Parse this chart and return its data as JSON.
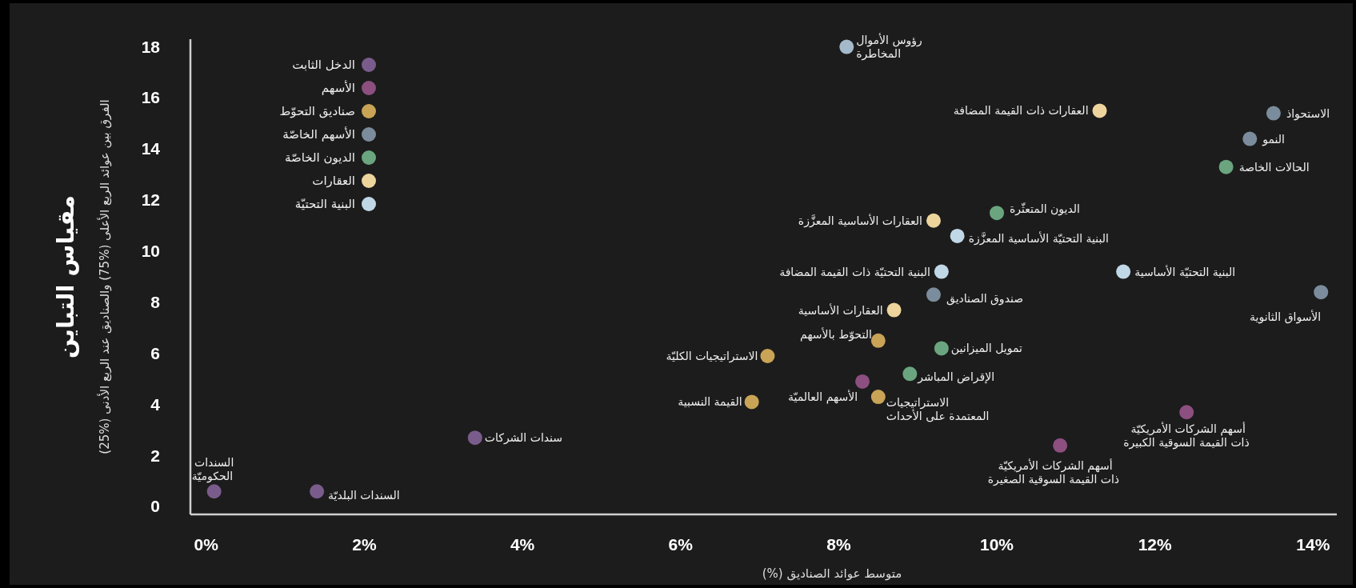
{
  "chart_data": {
    "type": "scatter",
    "xlabel": "متوسط عوائد الصناديق (%)",
    "ylabel": "مقياس التباين",
    "xlim": [
      -0.2,
      14.3
    ],
    "ylim": [
      -0.3,
      18.3
    ],
    "xticks": [
      {
        "value": 0,
        "label": "0%"
      },
      {
        "value": 2,
        "label": "2%"
      },
      {
        "value": 4,
        "label": "4%"
      },
      {
        "value": 6,
        "label": "6%"
      },
      {
        "value": 8,
        "label": "8%"
      },
      {
        "value": 10,
        "label": "10%"
      },
      {
        "value": 12,
        "label": "12%"
      },
      {
        "value": 14,
        "label": "14%"
      }
    ],
    "yticks": [
      0,
      2,
      4,
      6,
      8,
      10,
      12,
      14,
      16,
      18
    ],
    "grid": false,
    "legend": "top left",
    "marker": "circle",
    "series": [
      {
        "name": "الدخل الثابت",
        "color": "#7a5c8c",
        "x": [
          0.1,
          1.4,
          3.4
        ],
        "values": [
          0.6,
          0.6,
          2.7
        ]
      },
      {
        "name": "الأسهم",
        "color": "#8c4f80",
        "x": [
          8.3,
          12.4,
          10.8
        ],
        "values": [
          4.9,
          3.7,
          2.4
        ]
      },
      {
        "name": "صناديق التحوّط",
        "color": "#c9a456",
        "x": [
          8.5,
          7.1,
          6.9,
          8.5
        ],
        "values": [
          6.5,
          5.9,
          4.1,
          4.3
        ]
      },
      {
        "name": "الأسهم الخاصّة",
        "color": "#7b8c9c",
        "x": [
          13.5,
          13.2,
          9.2,
          14.1,
          8.1
        ],
        "values": [
          15.4,
          14.4,
          8.3,
          8.4,
          18.0
        ],
        "colors": [
          "#7b8c9c",
          "#7b8c9c",
          "#7b8c9c",
          "#7b8c9c",
          "#a4b9ca"
        ]
      },
      {
        "name": "الديون الخاصّة",
        "color": "#6aa57f",
        "x": [
          12.9,
          10.0,
          9.3,
          8.9
        ],
        "values": [
          13.3,
          11.5,
          6.2,
          5.2
        ]
      },
      {
        "name": "العقارات",
        "color": "#ecd49c",
        "x": [
          11.3,
          9.2,
          8.7
        ],
        "values": [
          15.5,
          11.2,
          7.7
        ]
      },
      {
        "name": "البنية التحتيّة",
        "color": "#c0d7e6",
        "x": [
          9.5,
          9.3,
          11.6
        ],
        "values": [
          10.6,
          9.2,
          9.2
        ]
      }
    ],
    "annotations": [
      {
        "text": "السندات الحكوميّة",
        "x": 0.1,
        "y": 0.6
      },
      {
        "text": "السندات البلديّة",
        "x": 1.4,
        "y": 0.6
      },
      {
        "text": "سندات الشركات",
        "x": 3.4,
        "y": 2.7
      },
      {
        "text": "الأسهم العالميّة",
        "x": 8.3,
        "y": 4.9
      },
      {
        "text": "أسهم الشركات الأمريكيّة ذات القيمة السوقية الكبيرة",
        "x": 12.4,
        "y": 3.7
      },
      {
        "text": "أسهم الشركات الأمريكيّة ذات القيمة السوقية الصغيرة",
        "x": 10.8,
        "y": 2.4
      },
      {
        "text": "الاستحواذ",
        "x": 13.5,
        "y": 15.4
      },
      {
        "text": "النمو",
        "x": 13.2,
        "y": 14.4
      },
      {
        "text": "الحالات الخاصة",
        "x": 12.9,
        "y": 13.3
      },
      {
        "text": "صندوق الصناديق",
        "x": 9.2,
        "y": 8.3
      },
      {
        "text": "الأسواق الثانوية",
        "x": 14.1,
        "y": 8.4
      },
      {
        "text": "الديون المتعثّرة",
        "x": 10.0,
        "y": 11.5
      },
      {
        "text": "تمويل الميزانين",
        "x": 9.3,
        "y": 6.2
      },
      {
        "text": "الإقراض المباشر",
        "x": 8.9,
        "y": 5.2
      },
      {
        "text": "التحوّط بالأسهم",
        "x": 8.5,
        "y": 6.5
      },
      {
        "text": "الاستراتيجيات الكليّة",
        "x": 7.1,
        "y": 5.9
      },
      {
        "text": "القيمة النسبية",
        "x": 6.9,
        "y": 4.1
      },
      {
        "text": "الاستراتيجيات المعتمدة على الأحداث",
        "x": 8.5,
        "y": 4.3
      },
      {
        "text": "العقارات ذات القيمة المضافة",
        "x": 11.3,
        "y": 15.5
      },
      {
        "text": "العقارات الأساسية المعزَّزة",
        "x": 9.2,
        "y": 11.2
      },
      {
        "text": "العقارات الأساسية",
        "x": 8.7,
        "y": 7.7
      },
      {
        "text": "رؤوس الأموال المخاطرة",
        "x": 8.1,
        "y": 18.0
      },
      {
        "text": "البنية التحتيّة الأساسية المعزَّزة",
        "x": 9.5,
        "y": 10.6
      },
      {
        "text": "البنية التحتيّة ذات القيمة المضافة",
        "x": 9.3,
        "y": 9.2
      },
      {
        "text": "البنية التحتيّة الأساسية",
        "x": 11.6,
        "y": 9.2
      },
      "الفرق بين عوائد الربع الأعلى (%75) والصناديق عند الربع الأدنى (%25)"
    ]
  }
}
